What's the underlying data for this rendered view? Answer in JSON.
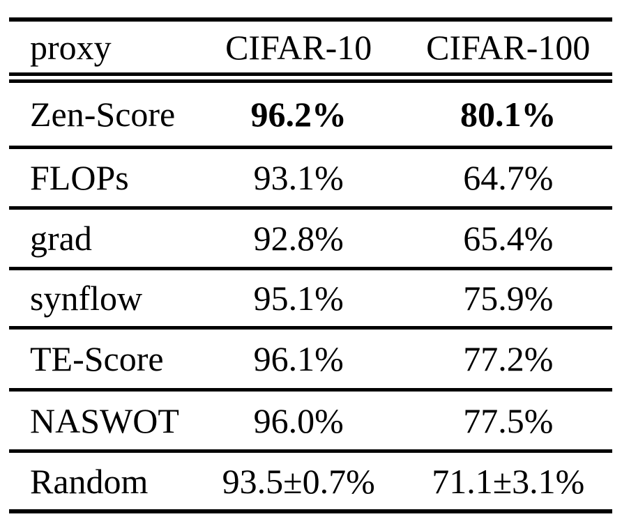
{
  "table": {
    "columns": [
      "proxy",
      "CIFAR-10",
      "CIFAR-100"
    ],
    "rows": [
      {
        "proxy": "Zen-Score",
        "cifar10": "96.2%",
        "cifar100": "80.1%",
        "emphasis": "bold"
      },
      {
        "proxy": "FLOPs",
        "cifar10": "93.1%",
        "cifar100": "64.7%",
        "emphasis": "none"
      },
      {
        "proxy": "grad",
        "cifar10": "92.8%",
        "cifar100": "65.4%",
        "emphasis": "none"
      },
      {
        "proxy": "synflow",
        "cifar10": "95.1%",
        "cifar100": "75.9%",
        "emphasis": "none"
      },
      {
        "proxy": "TE-Score",
        "cifar10": "96.1%",
        "cifar100": "77.2%",
        "emphasis": "none"
      },
      {
        "proxy": "NASWOT",
        "cifar10": "96.0%",
        "cifar100": "77.5%",
        "emphasis": "none"
      },
      {
        "proxy": "Random",
        "cifar10": "93.5±0.7%",
        "cifar100": "71.1±3.1%",
        "emphasis": "none"
      }
    ],
    "colors": {
      "text": "#000000",
      "background": "#ffffff",
      "rule": "#000000"
    }
  },
  "chart_data": {
    "type": "table",
    "title": "",
    "columns": [
      "proxy",
      "CIFAR-10",
      "CIFAR-100"
    ],
    "series": [
      {
        "name": "CIFAR-10",
        "categories": [
          "Zen-Score",
          "FLOPs",
          "grad",
          "synflow",
          "TE-Score",
          "NASWOT",
          "Random"
        ],
        "values": [
          96.2,
          93.1,
          92.8,
          95.1,
          96.1,
          96.0,
          93.5
        ],
        "stddev": [
          null,
          null,
          null,
          null,
          null,
          null,
          0.7
        ]
      },
      {
        "name": "CIFAR-100",
        "categories": [
          "Zen-Score",
          "FLOPs",
          "grad",
          "synflow",
          "TE-Score",
          "NASWOT",
          "Random"
        ],
        "values": [
          80.1,
          64.7,
          65.4,
          75.9,
          77.2,
          77.5,
          71.1
        ],
        "stddev": [
          null,
          null,
          null,
          null,
          null,
          null,
          3.1
        ]
      }
    ],
    "best_row": "Zen-Score",
    "unit": "%"
  }
}
